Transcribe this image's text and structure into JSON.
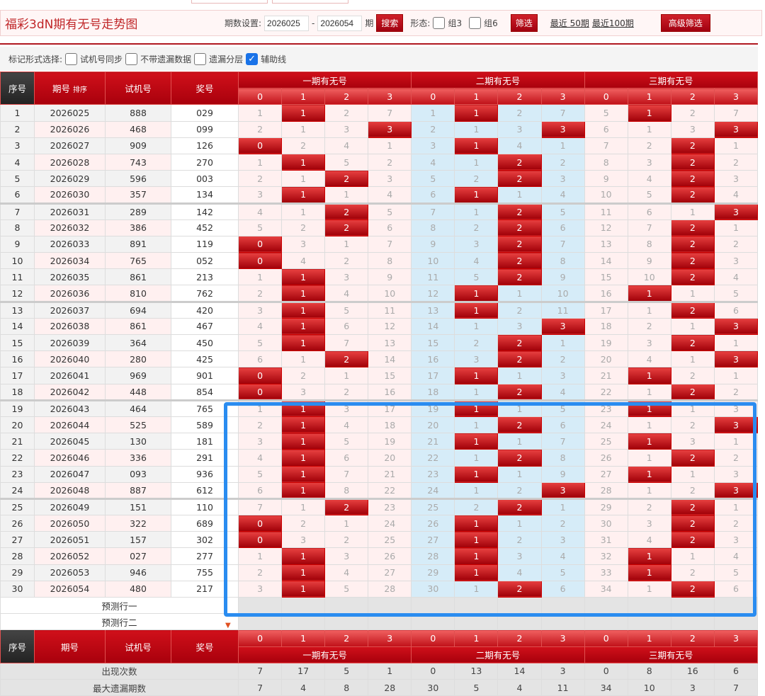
{
  "header": {
    "title": "福彩3dN期有无号走势图",
    "period_label": "期数设置:",
    "period_from": "2026025",
    "period_to": "2026054",
    "period_unit": "期",
    "search_label": "搜索",
    "form_label": "形态:",
    "group3": "组3",
    "group6": "组6",
    "filter_label": "筛选",
    "recent50": "最近 50期",
    "recent100": "最近100期",
    "advanced_label": "高级筛选"
  },
  "options": {
    "label": "标记形式选择:",
    "items": [
      {
        "label": "试机号同步",
        "checked": false
      },
      {
        "label": "不带遗漏数据",
        "checked": false
      },
      {
        "label": "遗漏分层",
        "checked": false
      },
      {
        "label": "辅助线",
        "checked": true
      }
    ]
  },
  "table": {
    "headers": {
      "seq": "序号",
      "period": "期号",
      "sort": "排序",
      "trial": "试机号",
      "award": "奖号",
      "groups": [
        "一期有无号",
        "二期有无号",
        "三期有无号"
      ],
      "digits": [
        "0",
        "1",
        "2",
        "3"
      ]
    },
    "rows": [
      [
        "1",
        "2026025",
        "888",
        "029",
        [
          1,
          1,
          2,
          7
        ],
        1,
        [
          1,
          1,
          2,
          7
        ],
        1,
        [
          5,
          1,
          2,
          7
        ],
        1
      ],
      [
        "2",
        "2026026",
        "468",
        "099",
        [
          2,
          1,
          3,
          3
        ],
        3,
        [
          2,
          1,
          3,
          3
        ],
        3,
        [
          6,
          1,
          3,
          3
        ],
        3
      ],
      [
        "3",
        "2026027",
        "909",
        "126",
        [
          0,
          2,
          4,
          1
        ],
        0,
        [
          3,
          1,
          4,
          1
        ],
        1,
        [
          7,
          2,
          2,
          1
        ],
        2
      ],
      [
        "4",
        "2026028",
        "743",
        "270",
        [
          1,
          1,
          5,
          2
        ],
        1,
        [
          4,
          1,
          2,
          2
        ],
        2,
        [
          8,
          3,
          2,
          2
        ],
        2
      ],
      [
        "5",
        "2026029",
        "596",
        "003",
        [
          2,
          1,
          2,
          3
        ],
        2,
        [
          5,
          2,
          2,
          3
        ],
        2,
        [
          9,
          4,
          2,
          3
        ],
        2
      ],
      [
        "6",
        "2026030",
        "357",
        "134",
        [
          3,
          1,
          1,
          4
        ],
        1,
        [
          6,
          1,
          1,
          4
        ],
        1,
        [
          10,
          5,
          2,
          4
        ],
        2
      ],
      [
        "7",
        "2026031",
        "289",
        "142",
        [
          4,
          1,
          2,
          5
        ],
        2,
        [
          7,
          1,
          2,
          5
        ],
        2,
        [
          11,
          6,
          1,
          3
        ],
        3
      ],
      [
        "8",
        "2026032",
        "386",
        "452",
        [
          5,
          2,
          2,
          6
        ],
        2,
        [
          8,
          2,
          2,
          6
        ],
        2,
        [
          12,
          7,
          2,
          1
        ],
        2
      ],
      [
        "9",
        "2026033",
        "891",
        "119",
        [
          0,
          3,
          1,
          7
        ],
        0,
        [
          9,
          3,
          2,
          7
        ],
        2,
        [
          13,
          8,
          2,
          2
        ],
        2
      ],
      [
        "10",
        "2026034",
        "765",
        "052",
        [
          0,
          4,
          2,
          8
        ],
        0,
        [
          10,
          4,
          2,
          8
        ],
        2,
        [
          14,
          9,
          2,
          3
        ],
        2
      ],
      [
        "11",
        "2026035",
        "861",
        "213",
        [
          1,
          1,
          3,
          9
        ],
        1,
        [
          11,
          5,
          2,
          9
        ],
        2,
        [
          15,
          10,
          2,
          4
        ],
        2
      ],
      [
        "12",
        "2026036",
        "810",
        "762",
        [
          2,
          1,
          4,
          10
        ],
        1,
        [
          12,
          1,
          1,
          10
        ],
        1,
        [
          16,
          1,
          1,
          5
        ],
        1
      ],
      [
        "13",
        "2026037",
        "694",
        "420",
        [
          3,
          1,
          5,
          11
        ],
        1,
        [
          13,
          1,
          2,
          11
        ],
        1,
        [
          17,
          1,
          2,
          6
        ],
        2
      ],
      [
        "14",
        "2026038",
        "861",
        "467",
        [
          4,
          1,
          6,
          12
        ],
        1,
        [
          14,
          1,
          3,
          3
        ],
        3,
        [
          18,
          2,
          1,
          3
        ],
        3
      ],
      [
        "15",
        "2026039",
        "364",
        "450",
        [
          5,
          1,
          7,
          13
        ],
        1,
        [
          15,
          2,
          2,
          1
        ],
        2,
        [
          19,
          3,
          2,
          1
        ],
        2
      ],
      [
        "16",
        "2026040",
        "280",
        "425",
        [
          6,
          1,
          2,
          14
        ],
        2,
        [
          16,
          3,
          2,
          2
        ],
        2,
        [
          20,
          4,
          1,
          3
        ],
        3
      ],
      [
        "17",
        "2026041",
        "969",
        "901",
        [
          0,
          2,
          1,
          15
        ],
        0,
        [
          17,
          1,
          1,
          3
        ],
        1,
        [
          21,
          1,
          2,
          1
        ],
        1
      ],
      [
        "18",
        "2026042",
        "448",
        "854",
        [
          0,
          3,
          2,
          16
        ],
        0,
        [
          18,
          1,
          2,
          4
        ],
        2,
        [
          22,
          1,
          2,
          2
        ],
        2
      ],
      [
        "19",
        "2026043",
        "464",
        "765",
        [
          1,
          1,
          3,
          17
        ],
        1,
        [
          19,
          1,
          1,
          5
        ],
        1,
        [
          23,
          1,
          1,
          3
        ],
        1
      ],
      [
        "20",
        "2026044",
        "525",
        "589",
        [
          2,
          1,
          4,
          18
        ],
        1,
        [
          20,
          1,
          2,
          6
        ],
        2,
        [
          24,
          1,
          2,
          3
        ],
        3
      ],
      [
        "21",
        "2026045",
        "130",
        "181",
        [
          3,
          1,
          5,
          19
        ],
        1,
        [
          21,
          1,
          1,
          7
        ],
        1,
        [
          25,
          1,
          3,
          1
        ],
        1
      ],
      [
        "22",
        "2026046",
        "336",
        "291",
        [
          4,
          1,
          6,
          20
        ],
        1,
        [
          22,
          1,
          2,
          8
        ],
        2,
        [
          26,
          1,
          2,
          2
        ],
        2
      ],
      [
        "23",
        "2026047",
        "093",
        "936",
        [
          5,
          1,
          7,
          21
        ],
        1,
        [
          23,
          1,
          1,
          9
        ],
        1,
        [
          27,
          1,
          1,
          3
        ],
        1
      ],
      [
        "24",
        "2026048",
        "887",
        "612",
        [
          6,
          1,
          8,
          22
        ],
        1,
        [
          24,
          1,
          2,
          3
        ],
        3,
        [
          28,
          1,
          2,
          3
        ],
        3
      ],
      [
        "25",
        "2026049",
        "151",
        "110",
        [
          7,
          1,
          2,
          23
        ],
        2,
        [
          25,
          2,
          2,
          1
        ],
        2,
        [
          29,
          2,
          2,
          1
        ],
        2
      ],
      [
        "26",
        "2026050",
        "322",
        "689",
        [
          0,
          2,
          1,
          24
        ],
        0,
        [
          26,
          1,
          1,
          2
        ],
        1,
        [
          30,
          3,
          2,
          2
        ],
        2
      ],
      [
        "27",
        "2026051",
        "157",
        "302",
        [
          0,
          3,
          2,
          25
        ],
        0,
        [
          27,
          1,
          2,
          3
        ],
        1,
        [
          31,
          4,
          2,
          3
        ],
        2
      ],
      [
        "28",
        "2026052",
        "027",
        "277",
        [
          1,
          1,
          3,
          26
        ],
        1,
        [
          28,
          1,
          3,
          4
        ],
        1,
        [
          32,
          1,
          1,
          4
        ],
        1
      ],
      [
        "29",
        "2026053",
        "946",
        "755",
        [
          2,
          1,
          4,
          27
        ],
        1,
        [
          29,
          1,
          4,
          5
        ],
        1,
        [
          33,
          1,
          2,
          5
        ],
        1
      ],
      [
        "30",
        "2026054",
        "480",
        "217",
        [
          3,
          1,
          5,
          28
        ],
        1,
        [
          30,
          1,
          2,
          6
        ],
        2,
        [
          34,
          1,
          2,
          6
        ],
        2
      ]
    ],
    "predict": [
      "预测行一",
      "预测行二"
    ],
    "stats": [
      {
        "label": "出现次数",
        "values": [
          7,
          17,
          5,
          1,
          0,
          13,
          14,
          3,
          0,
          8,
          16,
          6
        ]
      },
      {
        "label": "最大遗漏期数",
        "values": [
          7,
          4,
          8,
          28,
          30,
          5,
          4,
          11,
          34,
          10,
          3,
          7
        ]
      }
    ]
  },
  "colors": {
    "accent": "#c0101a",
    "highlight_box": "#2a8cf0",
    "group2_bg": "#d6ecf8"
  }
}
